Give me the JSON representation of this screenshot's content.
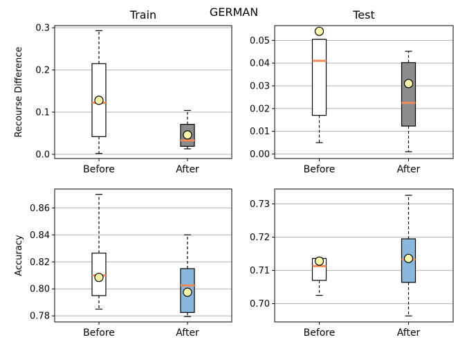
{
  "figure_title": "GERMAN",
  "colors": {
    "median": "#f08c5a",
    "mean_marker": "#fafaaa",
    "box_default": "#ffffff",
    "box_recourse_after": "#8c8c8c",
    "box_accuracy_after": "#8ab8dc",
    "grid": "#b0b0b0"
  },
  "chart_data": [
    {
      "type": "box",
      "title": "Train",
      "xlabel": "",
      "ylabel": "Recourse Difference",
      "categories": [
        "Before",
        "After"
      ],
      "ylim": [
        -0.01,
        0.305
      ],
      "yticks": [
        0.0,
        0.1,
        0.2,
        0.3
      ],
      "ytick_labels": [
        "0.0",
        "0.1",
        "0.2",
        "0.3"
      ],
      "grid": true,
      "boxes": [
        {
          "label": "Before",
          "whisker_low": 0.002,
          "q1": 0.042,
          "median": 0.122,
          "q3": 0.215,
          "whisker_high": 0.293,
          "mean": 0.128,
          "fill": "#ffffff"
        },
        {
          "label": "After",
          "whisker_low": 0.013,
          "q1": 0.019,
          "median": 0.033,
          "q3": 0.071,
          "whisker_high": 0.104,
          "mean": 0.046,
          "fill": "#8c8c8c"
        }
      ]
    },
    {
      "type": "box",
      "title": "Test",
      "xlabel": "",
      "ylabel": "",
      "categories": [
        "Before",
        "After"
      ],
      "ylim": [
        -0.002,
        0.0565
      ],
      "yticks": [
        0.0,
        0.01,
        0.02,
        0.03,
        0.04,
        0.05
      ],
      "ytick_labels": [
        "0.00",
        "0.01",
        "0.02",
        "0.03",
        "0.04",
        "0.05"
      ],
      "grid": true,
      "boxes": [
        {
          "label": "Before",
          "whisker_low": 0.005,
          "q1": 0.017,
          "median": 0.041,
          "q3": 0.0505,
          "whisker_high": 0.0505,
          "mean": 0.054,
          "fill": "#ffffff"
        },
        {
          "label": "After",
          "whisker_low": 0.001,
          "q1": 0.0123,
          "median": 0.0225,
          "q3": 0.0402,
          "whisker_high": 0.0452,
          "mean": 0.031,
          "fill": "#8c8c8c"
        }
      ]
    },
    {
      "type": "box",
      "title": "",
      "xlabel": "",
      "ylabel": "Accuracy",
      "categories": [
        "Before",
        "After"
      ],
      "ylim": [
        0.7755,
        0.874
      ],
      "yticks": [
        0.78,
        0.8,
        0.82,
        0.84,
        0.86
      ],
      "ytick_labels": [
        "0.78",
        "0.80",
        "0.82",
        "0.84",
        "0.86"
      ],
      "grid": true,
      "boxes": [
        {
          "label": "Before",
          "whisker_low": 0.785,
          "q1": 0.795,
          "median": 0.81,
          "q3": 0.8265,
          "whisker_high": 0.87,
          "mean": 0.8085,
          "fill": "#ffffff"
        },
        {
          "label": "After",
          "whisker_low": 0.7795,
          "q1": 0.7825,
          "median": 0.8025,
          "q3": 0.815,
          "whisker_high": 0.84,
          "mean": 0.7975,
          "fill": "#8ab8dc"
        }
      ]
    },
    {
      "type": "box",
      "title": "",
      "xlabel": "",
      "ylabel": "",
      "categories": [
        "Before",
        "After"
      ],
      "ylim": [
        0.6945,
        0.7345
      ],
      "yticks": [
        0.7,
        0.71,
        0.72,
        0.73
      ],
      "ytick_labels": [
        "0.70",
        "0.71",
        "0.72",
        "0.73"
      ],
      "grid": true,
      "boxes": [
        {
          "label": "Before",
          "whisker_low": 0.7025,
          "q1": 0.707,
          "median": 0.7113,
          "q3": 0.7136,
          "whisker_high": 0.7136,
          "mean": 0.7128,
          "fill": "#ffffff"
        },
        {
          "label": "After",
          "whisker_low": 0.6963,
          "q1": 0.7064,
          "median": 0.7133,
          "q3": 0.7195,
          "whisker_high": 0.7326,
          "mean": 0.7136,
          "fill": "#8ab8dc"
        }
      ]
    }
  ]
}
